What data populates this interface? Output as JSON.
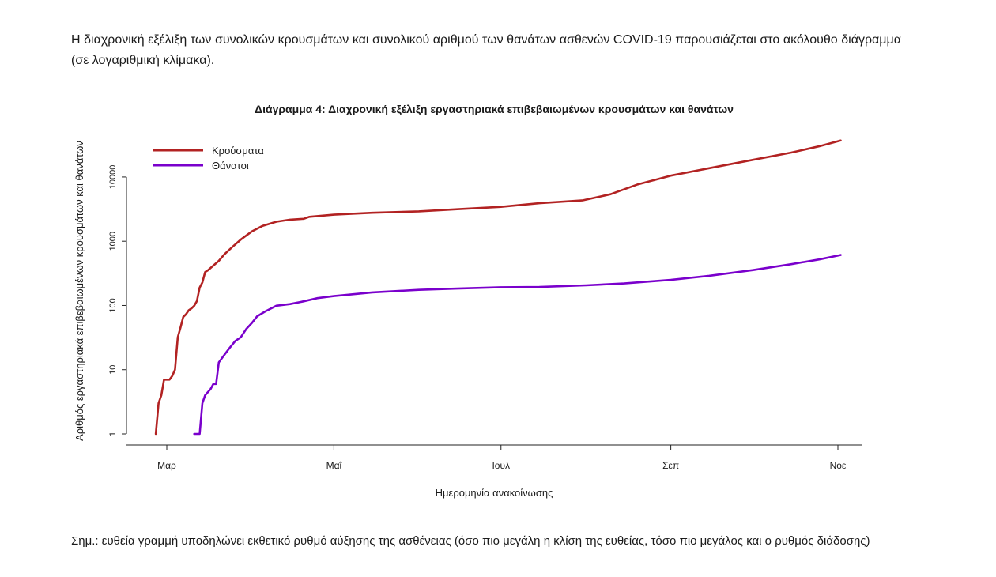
{
  "intro_text": "Η διαχρονική εξέλιξη των συνολικών κρουσμάτων και συνολικού αριθμού των θανάτων ασθενών COVID-19 παρουσιάζεται στο ακόλουθο διάγραμμα (σε λογαριθμική κλίμακα).",
  "note_text": "Σημ.: ευθεία γραμμή υποδηλώνει εκθετικό ρυθμό αύξησης της ασθένειας (όσο πιο μεγάλη η κλίση της ευθείας, τόσο πιο μεγάλος και ο ρυθμός διάδοσης)",
  "chart_data": {
    "type": "line",
    "title": "Διάγραμμα 4: Διαχρονική εξέλιξη εργαστηριακά επιβεβαιωμένων κρουσμάτων και θανάτων",
    "xlabel": "Ημερομηνία ανακοίνωσης",
    "ylabel": "Αριθμός εργαστηριακά επιβεβαιωμένων κρουσμάτων και θανάτων",
    "y_scale": "log",
    "ylim": [
      1,
      40000
    ],
    "y_ticks": [
      1,
      10,
      100,
      1000,
      10000
    ],
    "y_tick_labels": [
      "1",
      "10",
      "100",
      "1000",
      "10000"
    ],
    "x_ticks": [
      "2020-03-01",
      "2020-05-01",
      "2020-07-01",
      "2020-09-01",
      "2020-11-01"
    ],
    "x_tick_labels": [
      "Μαρ",
      "Μαΐ",
      "Ιουλ",
      "Σεπ",
      "Νοε"
    ],
    "xlim": [
      "2020-02-24",
      "2020-11-10"
    ],
    "grid": false,
    "legend_position": "top-left",
    "series": [
      {
        "name": "Κρούσματα",
        "color": "#b22222",
        "points": [
          [
            "2020-02-26",
            1
          ],
          [
            "2020-02-27",
            3
          ],
          [
            "2020-02-28",
            4
          ],
          [
            "2020-02-29",
            7
          ],
          [
            "2020-03-01",
            7
          ],
          [
            "2020-03-02",
            7
          ],
          [
            "2020-03-03",
            8
          ],
          [
            "2020-03-04",
            10
          ],
          [
            "2020-03-05",
            32
          ],
          [
            "2020-03-06",
            45
          ],
          [
            "2020-03-07",
            66
          ],
          [
            "2020-03-08",
            73
          ],
          [
            "2020-03-09",
            84
          ],
          [
            "2020-03-10",
            90
          ],
          [
            "2020-03-11",
            99
          ],
          [
            "2020-03-12",
            117
          ],
          [
            "2020-03-13",
            190
          ],
          [
            "2020-03-14",
            228
          ],
          [
            "2020-03-15",
            331
          ],
          [
            "2020-03-16",
            352
          ],
          [
            "2020-03-18",
            418
          ],
          [
            "2020-03-20",
            495
          ],
          [
            "2020-03-22",
            624
          ],
          [
            "2020-03-25",
            821
          ],
          [
            "2020-03-28",
            1061
          ],
          [
            "2020-04-01",
            1415
          ],
          [
            "2020-04-05",
            1735
          ],
          [
            "2020-04-10",
            2011
          ],
          [
            "2020-04-15",
            2170
          ],
          [
            "2020-04-20",
            2235
          ],
          [
            "2020-04-22",
            2401
          ],
          [
            "2020-05-01",
            2591
          ],
          [
            "2020-05-15",
            2770
          ],
          [
            "2020-06-01",
            2918
          ],
          [
            "2020-06-15",
            3148
          ],
          [
            "2020-07-01",
            3432
          ],
          [
            "2020-07-15",
            3910
          ],
          [
            "2020-07-31",
            4337
          ],
          [
            "2020-08-10",
            5400
          ],
          [
            "2020-08-20",
            7700
          ],
          [
            "2020-09-01",
            10500
          ],
          [
            "2020-09-15",
            13700
          ],
          [
            "2020-10-01",
            18500
          ],
          [
            "2020-10-15",
            24000
          ],
          [
            "2020-10-25",
            30000
          ],
          [
            "2020-11-02",
            37000
          ]
        ]
      },
      {
        "name": "Θάνατοι",
        "color": "#7a00cc",
        "points": [
          [
            "2020-03-11",
            1
          ],
          [
            "2020-03-13",
            1
          ],
          [
            "2020-03-14",
            3
          ],
          [
            "2020-03-15",
            4
          ],
          [
            "2020-03-17",
            5
          ],
          [
            "2020-03-18",
            6
          ],
          [
            "2020-03-19",
            6
          ],
          [
            "2020-03-20",
            13
          ],
          [
            "2020-03-22",
            17
          ],
          [
            "2020-03-24",
            22
          ],
          [
            "2020-03-26",
            28
          ],
          [
            "2020-03-28",
            32
          ],
          [
            "2020-03-30",
            43
          ],
          [
            "2020-04-01",
            53
          ],
          [
            "2020-04-03",
            68
          ],
          [
            "2020-04-06",
            81
          ],
          [
            "2020-04-10",
            99
          ],
          [
            "2020-04-15",
            105
          ],
          [
            "2020-04-20",
            116
          ],
          [
            "2020-04-25",
            130
          ],
          [
            "2020-05-01",
            140
          ],
          [
            "2020-05-15",
            160
          ],
          [
            "2020-06-01",
            175
          ],
          [
            "2020-06-15",
            183
          ],
          [
            "2020-07-01",
            192
          ],
          [
            "2020-07-15",
            194
          ],
          [
            "2020-08-01",
            206
          ],
          [
            "2020-08-15",
            220
          ],
          [
            "2020-09-01",
            250
          ],
          [
            "2020-09-15",
            290
          ],
          [
            "2020-10-01",
            355
          ],
          [
            "2020-10-15",
            440
          ],
          [
            "2020-10-25",
            520
          ],
          [
            "2020-11-02",
            610
          ]
        ]
      }
    ]
  }
}
